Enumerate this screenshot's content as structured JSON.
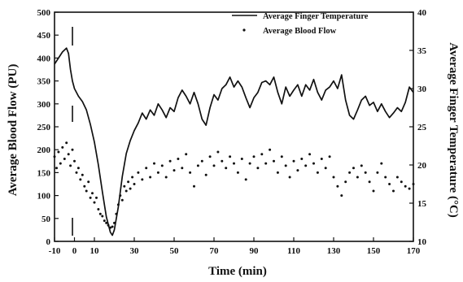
{
  "chart_data": {
    "type": "line",
    "title": "",
    "xlabel": "Time (min)",
    "ylabel_left": "Average Blood Flow (PU)",
    "ylabel_right": "Average Finger Temperature (°C)",
    "xlim": [
      -10,
      170
    ],
    "ylim_left": [
      0,
      500
    ],
    "ylim_right": [
      10,
      40
    ],
    "x_ticks": [
      -10,
      0,
      10,
      30,
      50,
      70,
      90,
      110,
      130,
      150,
      170
    ],
    "y_left_ticks": [
      0,
      50,
      100,
      150,
      200,
      250,
      300,
      350,
      400,
      450,
      500
    ],
    "y_right_ticks": [
      10,
      15,
      20,
      25,
      30,
      35,
      40
    ],
    "markers_at_x": [
      -1
    ],
    "grid": false,
    "legend_position": "top-right",
    "series": [
      {
        "name": "Average Finger Temperature",
        "axis": "right",
        "style": "line",
        "color": "#111111",
        "points": [
          [
            -10,
            33.2
          ],
          [
            -8,
            34.0
          ],
          [
            -6,
            34.8
          ],
          [
            -4,
            35.3
          ],
          [
            -3,
            34.6
          ],
          [
            -2,
            32.5
          ],
          [
            -1,
            31.0
          ],
          [
            0,
            30.0
          ],
          [
            2,
            29.0
          ],
          [
            4,
            28.3
          ],
          [
            6,
            27.2
          ],
          [
            8,
            25.3
          ],
          [
            10,
            23.0
          ],
          [
            12,
            20.0
          ],
          [
            14,
            16.5
          ],
          [
            16,
            13.2
          ],
          [
            18,
            11.2
          ],
          [
            19,
            10.8
          ],
          [
            20,
            11.5
          ],
          [
            22,
            14.5
          ],
          [
            24,
            18.5
          ],
          [
            26,
            21.5
          ],
          [
            28,
            23.2
          ],
          [
            30,
            24.5
          ],
          [
            32,
            25.5
          ],
          [
            34,
            26.8
          ],
          [
            36,
            26.0
          ],
          [
            38,
            27.2
          ],
          [
            40,
            26.5
          ],
          [
            42,
            28.0
          ],
          [
            44,
            27.2
          ],
          [
            46,
            26.2
          ],
          [
            48,
            27.5
          ],
          [
            50,
            27.0
          ],
          [
            52,
            28.8
          ],
          [
            54,
            29.8
          ],
          [
            56,
            29.0
          ],
          [
            58,
            28.0
          ],
          [
            60,
            29.5
          ],
          [
            62,
            28.0
          ],
          [
            64,
            26.0
          ],
          [
            66,
            25.2
          ],
          [
            68,
            27.5
          ],
          [
            70,
            29.2
          ],
          [
            72,
            28.5
          ],
          [
            74,
            30.0
          ],
          [
            76,
            30.5
          ],
          [
            78,
            31.5
          ],
          [
            80,
            30.2
          ],
          [
            82,
            31.0
          ],
          [
            84,
            30.2
          ],
          [
            86,
            28.8
          ],
          [
            88,
            27.5
          ],
          [
            90,
            28.8
          ],
          [
            92,
            29.5
          ],
          [
            94,
            30.8
          ],
          [
            96,
            31.0
          ],
          [
            98,
            30.5
          ],
          [
            100,
            31.5
          ],
          [
            102,
            29.5
          ],
          [
            104,
            28.0
          ],
          [
            106,
            30.2
          ],
          [
            108,
            29.0
          ],
          [
            110,
            29.8
          ],
          [
            112,
            30.5
          ],
          [
            114,
            29.0
          ],
          [
            116,
            30.5
          ],
          [
            118,
            29.8
          ],
          [
            120,
            31.2
          ],
          [
            122,
            29.5
          ],
          [
            124,
            28.5
          ],
          [
            126,
            29.8
          ],
          [
            128,
            30.2
          ],
          [
            130,
            31.0
          ],
          [
            132,
            30.0
          ],
          [
            134,
            31.8
          ],
          [
            136,
            28.5
          ],
          [
            138,
            26.5
          ],
          [
            140,
            26.0
          ],
          [
            142,
            27.2
          ],
          [
            144,
            28.5
          ],
          [
            146,
            29.0
          ],
          [
            148,
            27.8
          ],
          [
            150,
            28.2
          ],
          [
            152,
            27.0
          ],
          [
            154,
            28.0
          ],
          [
            156,
            27.0
          ],
          [
            158,
            26.2
          ],
          [
            160,
            26.8
          ],
          [
            162,
            27.5
          ],
          [
            164,
            27.0
          ],
          [
            166,
            28.2
          ],
          [
            168,
            30.2
          ],
          [
            170,
            29.5
          ]
        ]
      },
      {
        "name": "Average Blood Flow",
        "axis": "left",
        "style": "scatter",
        "color": "#111111",
        "points": [
          [
            -10,
            185
          ],
          [
            -9,
            160
          ],
          [
            -8,
            195
          ],
          [
            -7,
            170
          ],
          [
            -6,
            205
          ],
          [
            -5,
            180
          ],
          [
            -4,
            215
          ],
          [
            -3,
            190
          ],
          [
            -2,
            165
          ],
          [
            -1,
            200
          ],
          [
            0,
            175
          ],
          [
            1,
            150
          ],
          [
            2,
            160
          ],
          [
            3,
            135
          ],
          [
            4,
            145
          ],
          [
            5,
            120
          ],
          [
            6,
            110
          ],
          [
            7,
            130
          ],
          [
            8,
            95
          ],
          [
            9,
            105
          ],
          [
            10,
            85
          ],
          [
            11,
            95
          ],
          [
            12,
            70
          ],
          [
            13,
            60
          ],
          [
            14,
            55
          ],
          [
            15,
            45
          ],
          [
            16,
            40
          ],
          [
            17,
            35
          ],
          [
            18,
            30
          ],
          [
            19,
            32
          ],
          [
            20,
            40
          ],
          [
            21,
            60
          ],
          [
            22,
            80
          ],
          [
            23,
            100
          ],
          [
            24,
            90
          ],
          [
            25,
            120
          ],
          [
            26,
            110
          ],
          [
            27,
            130
          ],
          [
            28,
            115
          ],
          [
            29,
            140
          ],
          [
            30,
            125
          ],
          [
            32,
            150
          ],
          [
            34,
            135
          ],
          [
            36,
            160
          ],
          [
            38,
            140
          ],
          [
            40,
            170
          ],
          [
            42,
            150
          ],
          [
            44,
            165
          ],
          [
            46,
            140
          ],
          [
            48,
            175
          ],
          [
            50,
            155
          ],
          [
            52,
            180
          ],
          [
            54,
            160
          ],
          [
            56,
            190
          ],
          [
            58,
            150
          ],
          [
            60,
            120
          ],
          [
            62,
            165
          ],
          [
            64,
            175
          ],
          [
            66,
            145
          ],
          [
            68,
            185
          ],
          [
            70,
            165
          ],
          [
            72,
            195
          ],
          [
            74,
            175
          ],
          [
            76,
            160
          ],
          [
            78,
            185
          ],
          [
            80,
            170
          ],
          [
            82,
            150
          ],
          [
            84,
            180
          ],
          [
            86,
            135
          ],
          [
            88,
            170
          ],
          [
            90,
            185
          ],
          [
            92,
            160
          ],
          [
            94,
            190
          ],
          [
            96,
            170
          ],
          [
            98,
            200
          ],
          [
            100,
            175
          ],
          [
            102,
            150
          ],
          [
            104,
            185
          ],
          [
            106,
            165
          ],
          [
            108,
            140
          ],
          [
            110,
            175
          ],
          [
            112,
            155
          ],
          [
            114,
            180
          ],
          [
            116,
            165
          ],
          [
            118,
            190
          ],
          [
            120,
            170
          ],
          [
            122,
            150
          ],
          [
            124,
            180
          ],
          [
            126,
            160
          ],
          [
            128,
            185
          ],
          [
            130,
            140
          ],
          [
            132,
            120
          ],
          [
            134,
            100
          ],
          [
            136,
            130
          ],
          [
            138,
            150
          ],
          [
            140,
            160
          ],
          [
            142,
            140
          ],
          [
            144,
            165
          ],
          [
            146,
            150
          ],
          [
            148,
            130
          ],
          [
            150,
            110
          ],
          [
            152,
            150
          ],
          [
            154,
            170
          ],
          [
            156,
            140
          ],
          [
            158,
            125
          ],
          [
            160,
            110
          ],
          [
            162,
            140
          ],
          [
            164,
            130
          ],
          [
            166,
            120
          ],
          [
            168,
            115
          ],
          [
            170,
            125
          ]
        ]
      }
    ]
  }
}
